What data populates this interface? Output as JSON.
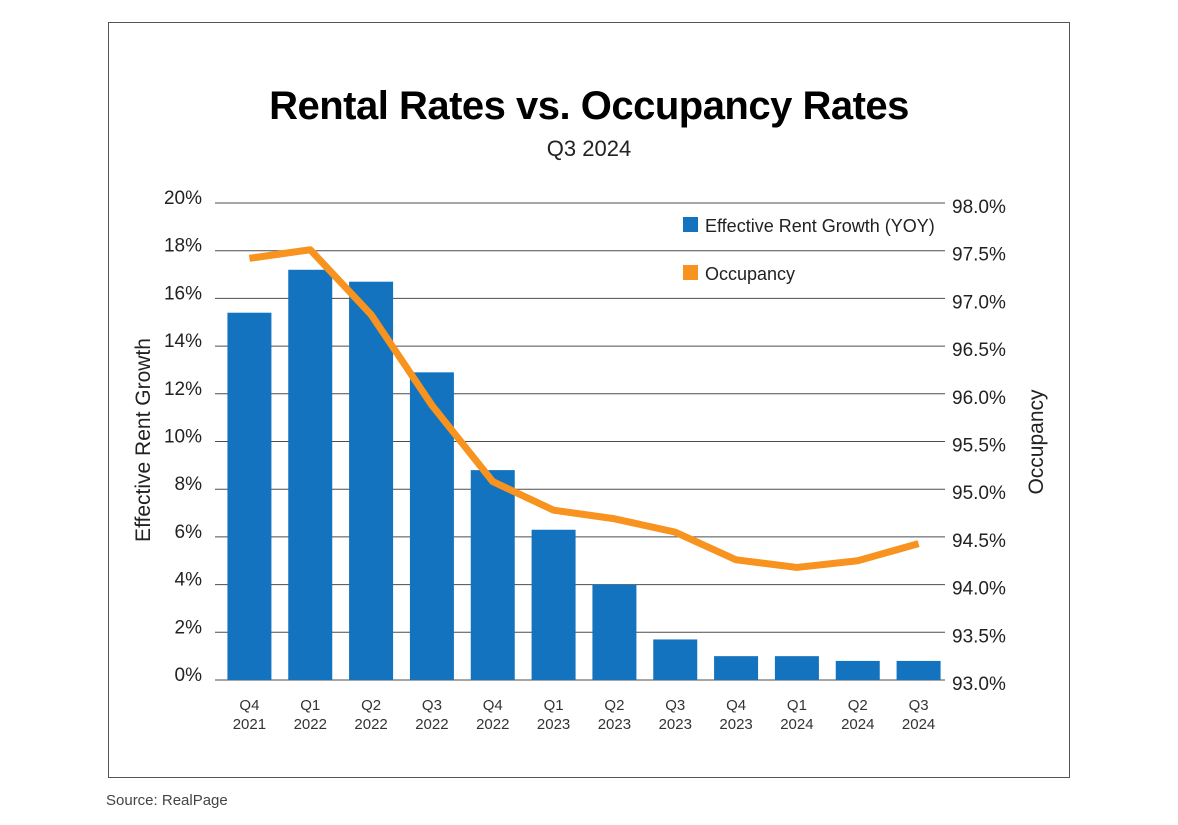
{
  "chart_data": {
    "type": "bar",
    "title": "Rental Rates vs. Occupancy Rates",
    "subtitle": "Q3 2024",
    "source": "Source: RealPage",
    "categories": [
      [
        "Q4",
        "2021"
      ],
      [
        "Q1",
        "2022"
      ],
      [
        "Q2",
        "2022"
      ],
      [
        "Q3",
        "2022"
      ],
      [
        "Q4",
        "2022"
      ],
      [
        "Q1",
        "2023"
      ],
      [
        "Q2",
        "2023"
      ],
      [
        "Q3",
        "2023"
      ],
      [
        "Q4",
        "2023"
      ],
      [
        "Q1",
        "2024"
      ],
      [
        "Q2",
        "2024"
      ],
      [
        "Q3",
        "2024"
      ]
    ],
    "series": [
      {
        "name": "Effective Rent Growth (YOY)",
        "type": "bar",
        "axis": "left",
        "color": "#1473be",
        "values": [
          15.4,
          17.2,
          16.7,
          12.9,
          8.8,
          6.3,
          4.0,
          1.7,
          1.0,
          1.0,
          0.8,
          0.8
        ]
      },
      {
        "name": "Occupancy",
        "type": "line",
        "axis": "right",
        "color": "#f7931e",
        "values": [
          97.42,
          97.51,
          96.83,
          95.88,
          95.08,
          94.78,
          94.69,
          94.55,
          94.26,
          94.18,
          94.25,
          94.43
        ]
      }
    ],
    "ylabel": "Effective Rent Growth",
    "y2label": "Occupancy",
    "ylim": [
      0,
      20
    ],
    "y2lim": [
      93.0,
      98.0
    ],
    "yticks": [
      "0%",
      "2%",
      "4%",
      "6%",
      "8%",
      "10%",
      "12%",
      "14%",
      "16%",
      "18%",
      "20%"
    ],
    "y2ticks": [
      "93.0%",
      "93.5%",
      "94.0%",
      "94.5%",
      "95.0%",
      "95.5%",
      "96.0%",
      "96.5%",
      "97.0%",
      "97.5%",
      "98.0%"
    ],
    "grid": true,
    "legend_position": "top-right"
  }
}
